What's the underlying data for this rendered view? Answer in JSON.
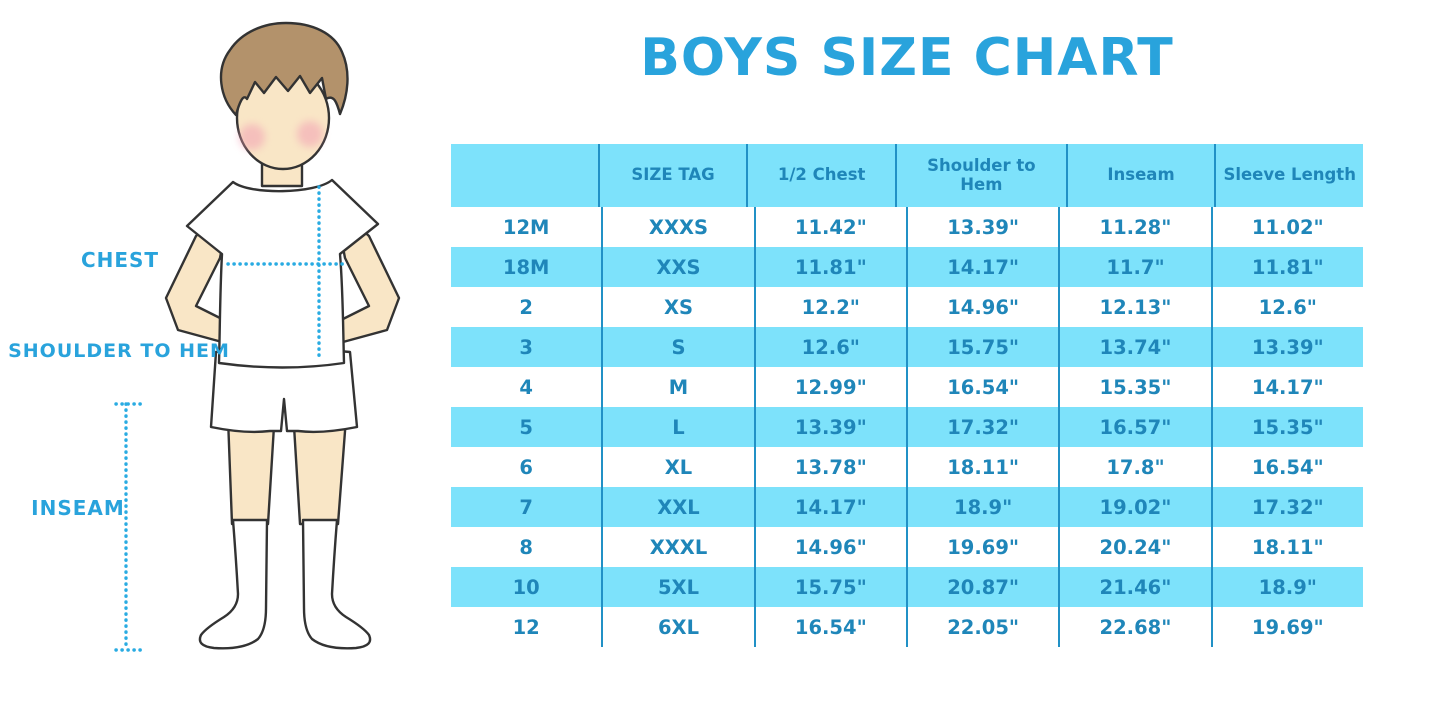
{
  "page_title": "BOYS SIZE CHART",
  "colors": {
    "accent_blue": "#29a3dc",
    "row_blue": "#7de2fb",
    "table_text": "#1f86b9",
    "grid_line": "#2191c6",
    "dotted_line": "#29abe2",
    "skin": "#f9e6c6",
    "hair": "#b3926b"
  },
  "diagram": {
    "labels": {
      "chest": "CHEST",
      "shoulder_to_hem": "SHOULDER TO HEM",
      "inseam": "INSEAM"
    }
  },
  "chart_data": {
    "type": "table",
    "title": "BOYS SIZE CHART",
    "columns": [
      "",
      "SIZE TAG",
      "1/2 Chest",
      "Shoulder to Hem",
      "Inseam",
      "Sleeve Length"
    ],
    "rows": [
      [
        "12M",
        "XXXS",
        "11.42\"",
        "13.39\"",
        "11.28\"",
        "11.02\""
      ],
      [
        "18M",
        "XXS",
        "11.81\"",
        "14.17\"",
        "11.7\"",
        "11.81\""
      ],
      [
        "2",
        "XS",
        "12.2\"",
        "14.96\"",
        "12.13\"",
        "12.6\""
      ],
      [
        "3",
        "S",
        "12.6\"",
        "15.75\"",
        "13.74\"",
        "13.39\""
      ],
      [
        "4",
        "M",
        "12.99\"",
        "16.54\"",
        "15.35\"",
        "14.17\""
      ],
      [
        "5",
        "L",
        "13.39\"",
        "17.32\"",
        "16.57\"",
        "15.35\""
      ],
      [
        "6",
        "XL",
        "13.78\"",
        "18.11\"",
        "17.8\"",
        "16.54\""
      ],
      [
        "7",
        "XXL",
        "14.17\"",
        "18.9\"",
        "19.02\"",
        "17.32\""
      ],
      [
        "8",
        "XXXL",
        "14.96\"",
        "19.69\"",
        "20.24\"",
        "18.11\""
      ],
      [
        "10",
        "5XL",
        "15.75\"",
        "20.87\"",
        "21.46\"",
        "18.9\""
      ],
      [
        "12",
        "6XL",
        "16.54\"",
        "22.05\"",
        "22.68\"",
        "19.69\""
      ]
    ]
  }
}
